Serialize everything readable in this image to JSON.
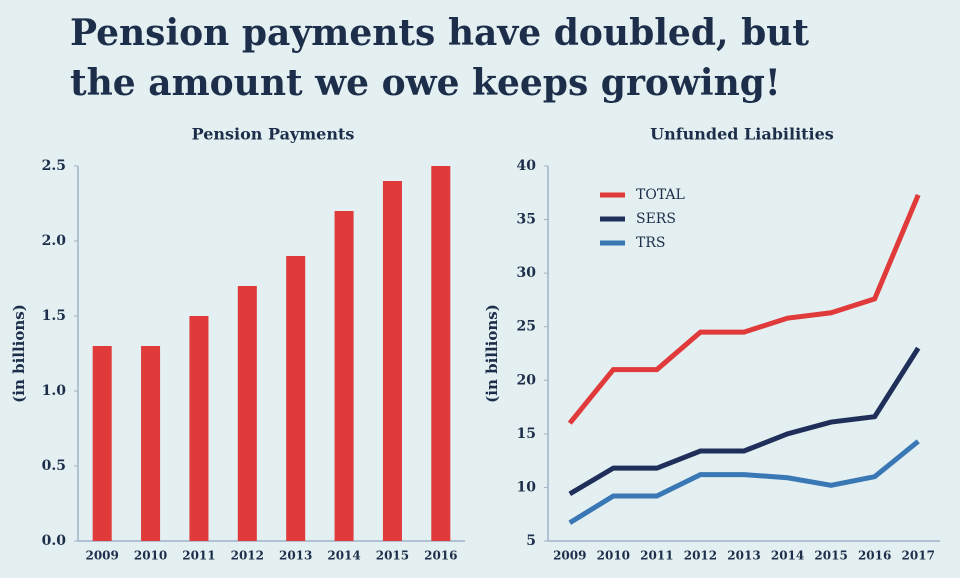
{
  "title": "Pension payments have doubled, but the amount we owe keeps growing!",
  "chart_data": [
    {
      "type": "bar",
      "title": "Pension Payments",
      "y_label": "(in billions)",
      "categories": [
        "2009",
        "2010",
        "2011",
        "2012",
        "2013",
        "2014",
        "2015",
        "2016"
      ],
      "values": [
        1.3,
        1.3,
        1.5,
        1.7,
        1.9,
        2.2,
        2.4,
        2.5
      ],
      "color": "#e03a3a",
      "ylim": [
        0,
        2.5
      ],
      "yticks": [
        {
          "value": 0,
          "label": "0.0"
        },
        0.5,
        {
          "value": 1,
          "label": "1.0"
        },
        1.5,
        {
          "value": 2,
          "label": "2.0"
        },
        2.5
      ]
    },
    {
      "type": "line",
      "title": "Unfunded Liabilities",
      "y_label": "(in billions)",
      "categories": [
        "2009",
        "2010",
        "2011",
        "2012",
        "2013",
        "2014",
        "2015",
        "2016",
        "2017"
      ],
      "series": [
        {
          "name": "TOTAL",
          "color": "#e03a3a",
          "values": [
            16,
            21,
            21,
            24.5,
            24.5,
            25.8,
            26.3,
            27.6,
            37.3
          ]
        },
        {
          "name": "SERS",
          "color": "#1f2f5a",
          "values": [
            9.4,
            11.8,
            11.8,
            13.4,
            13.4,
            15,
            16.1,
            16.6,
            23
          ]
        },
        {
          "name": "TRS",
          "color": "#3a78b5",
          "values": [
            6.7,
            9.2,
            9.2,
            11.2,
            11.2,
            10.9,
            10.2,
            11,
            14.3
          ]
        }
      ],
      "ylim": [
        5,
        40
      ],
      "yticks": [
        5,
        10,
        15,
        20,
        25,
        30,
        35,
        40
      ]
    }
  ]
}
